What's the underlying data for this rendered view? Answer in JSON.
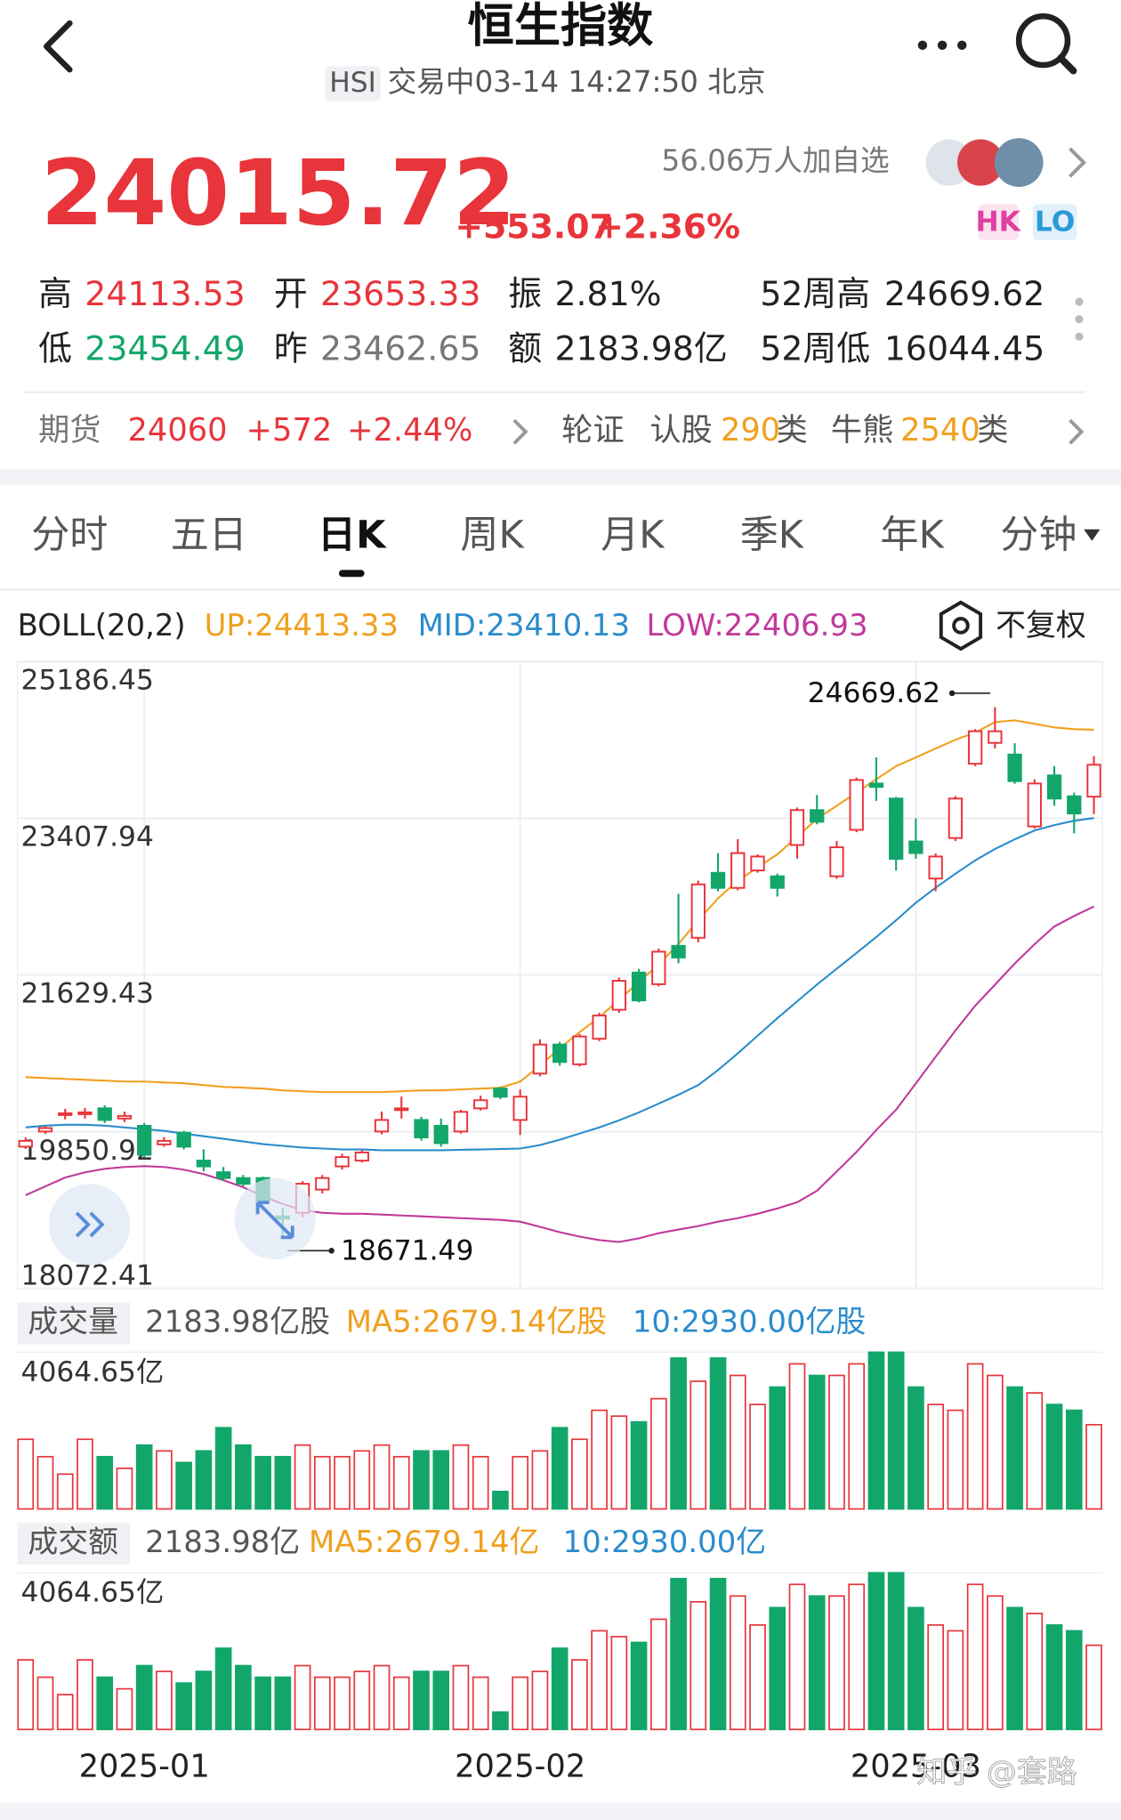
{
  "header": {
    "title": "恒生指数",
    "market": "HSI",
    "status": "交易中03-14 14:27:50 北京"
  },
  "quote": {
    "price": "24015.72",
    "change": "+553.07",
    "change_pct": "+2.36%",
    "followers": "56.06万人加自选",
    "badges": [
      "HK",
      "LO"
    ]
  },
  "stats": [
    [
      {
        "label": "高",
        "value": "24113.53"
      },
      {
        "label": "开",
        "value": "23653.33"
      },
      {
        "label": "振",
        "value": "2.81%"
      },
      {
        "label": "52周高",
        "value": "24669.62"
      }
    ],
    [
      {
        "label": "低",
        "value": "23454.49"
      },
      {
        "label": "昨",
        "value": "23462.65"
      },
      {
        "label": "额",
        "value": "2183.98亿"
      },
      {
        "label": "52周低",
        "value": "16044.45"
      }
    ]
  ],
  "futures": {
    "label": "期货",
    "price": "24060",
    "change": "+572",
    "change_pct": "+2.44%",
    "warrants": "轮证",
    "call_label": "认股",
    "call_count": "290",
    "call_unit": "类",
    "cbbc_label": "牛熊",
    "cbbc_count": "2540",
    "cbbc_unit": "类"
  },
  "tabs": [
    "分时",
    "五日",
    "日K",
    "周K",
    "月K",
    "季K",
    "年K",
    "分钟"
  ],
  "active_tab": "日K",
  "indicator": {
    "name": "BOLL(20,2)",
    "adjust": "不复权"
  },
  "chart_data": [
    {
      "type": "candlestick",
      "categories": [
        null,
        null,
        null,
        null,
        null,
        null,
        "2025-01",
        null,
        null,
        null,
        null,
        null,
        null,
        null,
        null,
        null,
        null,
        null,
        null,
        null,
        null,
        null,
        null,
        null,
        null,
        "2025-02",
        null,
        null,
        null,
        null,
        null,
        null,
        null,
        null,
        null,
        null,
        null,
        null,
        null,
        null,
        null,
        null,
        null,
        null,
        null,
        "2025-03",
        null,
        null,
        null,
        null,
        null,
        null,
        null,
        null,
        null
      ],
      "open": [
        19681,
        19853,
        20040,
        20050,
        20116,
        20000,
        19918,
        19707,
        19840,
        19523,
        19391,
        19325,
        19325,
        18890,
        18930,
        19194,
        19457,
        19523,
        19853,
        20100,
        19984,
        19918,
        19853,
        20116,
        20340,
        19984,
        20511,
        20840,
        20616,
        20906,
        21235,
        21657,
        21525,
        21960,
        22052,
        22789,
        22618,
        22816,
        22750,
        23105,
        23501,
        22750,
        23277,
        23803,
        23632,
        23145,
        22724,
        23184,
        24027,
        24264,
        24132,
        23316,
        23895,
        23658,
        23653.33
      ],
      "high": [
        19786,
        19918,
        20110,
        20120,
        20150,
        20080,
        19950,
        19790,
        19860,
        19650,
        19450,
        19360,
        19340,
        18990,
        19290,
        19360,
        19600,
        19640,
        20080,
        20250,
        20020,
        20000,
        20100,
        20260,
        20360,
        20330,
        20900,
        20870,
        20960,
        21200,
        21600,
        21700,
        21930,
        22552,
        22700,
        23013,
        23171,
        23000,
        22780,
        23530,
        23672,
        23150,
        23870,
        24100,
        23650,
        23408,
        23010,
        23660,
        24420,
        24669.62,
        24260,
        23850,
        24000,
        23700,
        24113.53
      ],
      "low": [
        19655,
        19826,
        19990,
        20000,
        19950,
        19960,
        19560,
        19680,
        19650,
        19400,
        19290,
        19230,
        19030,
        18671.49,
        18880,
        19150,
        19420,
        19500,
        19820,
        20000,
        19750,
        19680,
        19830,
        20090,
        20220,
        19813,
        20480,
        20600,
        20590,
        20880,
        21200,
        21320,
        21500,
        21762,
        22000,
        22580,
        22590,
        22790,
        22520,
        22950,
        23340,
        22720,
        23250,
        23606,
        22816,
        22950,
        22579,
        23150,
        24000,
        24200,
        23800,
        23290,
        23550,
        23237,
        23454.49
      ],
      "close": [
        19747,
        19892,
        20060,
        20070,
        19984,
        20030,
        19589,
        19747,
        19681,
        19457,
        19325,
        19260,
        19062,
        18864,
        19260,
        19325,
        19563,
        19615,
        19984,
        20116,
        19786,
        19721,
        20076,
        20208,
        20248,
        20248,
        20840,
        20642,
        20932,
        21169,
        21564,
        21341,
        21894,
        21828,
        22658,
        22618,
        23013,
        22974,
        22618,
        23501,
        23369,
        23079,
        23843,
        23764,
        22947,
        23013,
        22974,
        23632,
        24396,
        24396,
        23830,
        23803,
        23632,
        23462.65,
        24015.72
      ],
      "up_color": "#e8343b",
      "down_color": "#12a66a",
      "ylim": [
        18072.41,
        25186.45
      ],
      "yticks": [
        25186.45,
        23407.94,
        21629.43,
        19850.92,
        18072.41
      ],
      "grid": true,
      "series": [
        {
          "label": "UP:24413.33",
          "color": "#f0a01e",
          "values": [
            20470,
            20460,
            20450,
            20440,
            20430,
            20420,
            20420,
            20410,
            20400,
            20380,
            20360,
            20350,
            20340,
            20320,
            20310,
            20300,
            20300,
            20300,
            20300,
            20310,
            20320,
            20320,
            20330,
            20340,
            20350,
            20420,
            20600,
            20800,
            20980,
            21150,
            21350,
            21550,
            21750,
            21980,
            22250,
            22500,
            22700,
            22850,
            23000,
            23200,
            23400,
            23550,
            23700,
            23850,
            24000,
            24100,
            24200,
            24300,
            24380,
            24500,
            24520,
            24480,
            24440,
            24420,
            24413.33
          ]
        },
        {
          "label": "MID:23410.13",
          "color": "#2a8ccc",
          "values": [
            19900,
            19920,
            19930,
            19930,
            19920,
            19900,
            19880,
            19860,
            19830,
            19800,
            19770,
            19740,
            19710,
            19690,
            19670,
            19660,
            19650,
            19650,
            19640,
            19640,
            19640,
            19640,
            19645,
            19650,
            19655,
            19660,
            19700,
            19760,
            19830,
            19900,
            19980,
            20070,
            20170,
            20270,
            20380,
            20550,
            20740,
            20940,
            21140,
            21330,
            21520,
            21700,
            21880,
            22060,
            22250,
            22450,
            22620,
            22780,
            22930,
            23060,
            23170,
            23270,
            23330,
            23380,
            23410.13
          ]
        },
        {
          "label": "LOW:22406.93",
          "color": "#c0399a",
          "values": [
            19130,
            19230,
            19330,
            19390,
            19430,
            19450,
            19460,
            19450,
            19420,
            19370,
            19300,
            19220,
            19120,
            19030,
            18960,
            18930,
            18920,
            18920,
            18910,
            18900,
            18890,
            18880,
            18870,
            18860,
            18850,
            18830,
            18770,
            18710,
            18660,
            18620,
            18600,
            18640,
            18700,
            18740,
            18780,
            18830,
            18870,
            18920,
            18980,
            19050,
            19180,
            19400,
            19620,
            19870,
            20100,
            20400,
            20700,
            21000,
            21280,
            21520,
            21760,
            21980,
            22180,
            22300,
            22406.93
          ]
        }
      ],
      "annotations": {
        "max": 24669.62,
        "min": 18671.49
      }
    },
    {
      "type": "bar",
      "title": "成交量",
      "current": "2183.98亿股",
      "legend": [
        {
          "label": "MA5:2679.14亿股",
          "color": "#f0a01e"
        },
        {
          "label": "10:2930.00亿股",
          "color": "#2a8ccc"
        }
      ],
      "values": [
        1806,
        1355,
        903,
        1806,
        1355,
        1054,
        1656,
        1505,
        1204,
        1505,
        2107,
        1656,
        1355,
        1355,
        1656,
        1355,
        1355,
        1505,
        1656,
        1355,
        1505,
        1505,
        1656,
        1355,
        452,
        1355,
        1505,
        2107,
        1806,
        2559,
        2408,
        2258,
        2860,
        3913,
        3311,
        3913,
        3462,
        2709,
        3161,
        3763,
        3462,
        3462,
        3763,
        4064.65,
        4064,
        3161,
        2709,
        2559,
        3763,
        3462,
        3161,
        3010,
        2709,
        2559,
        2183.98
      ],
      "ylim": [
        0,
        4064.65
      ],
      "yticks": [
        {
          "value": 4064.65,
          "label": "4064.65亿"
        }
      ]
    },
    {
      "type": "bar",
      "title": "成交额",
      "current": "2183.98亿",
      "legend": [
        {
          "label": "MA5:2679.14亿",
          "color": "#f0a01e"
        },
        {
          "label": "10:2930.00亿",
          "color": "#2a8ccc"
        }
      ],
      "values": [
        1806,
        1355,
        903,
        1806,
        1355,
        1054,
        1656,
        1505,
        1204,
        1505,
        2107,
        1656,
        1355,
        1355,
        1656,
        1355,
        1355,
        1505,
        1656,
        1355,
        1505,
        1505,
        1656,
        1355,
        452,
        1355,
        1505,
        2107,
        1806,
        2559,
        2408,
        2258,
        2860,
        3913,
        3311,
        3913,
        3462,
        2709,
        3161,
        3763,
        3462,
        3462,
        3763,
        4064.65,
        4064,
        3161,
        2709,
        2559,
        3763,
        3462,
        3161,
        3010,
        2709,
        2559,
        2183.98
      ],
      "ylim": [
        0,
        4064.65
      ],
      "yticks": [
        {
          "value": 4064.65,
          "label": "4064.65亿"
        }
      ]
    }
  ],
  "watermark": "知乎 @套路"
}
